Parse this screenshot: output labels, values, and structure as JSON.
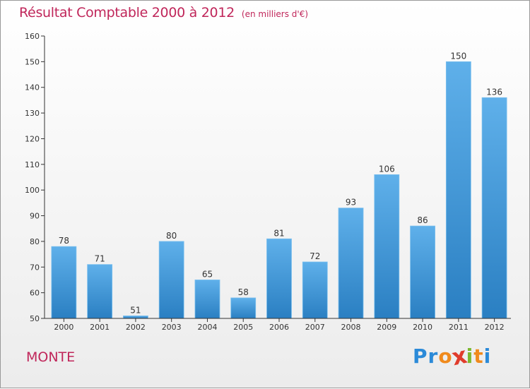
{
  "title": "Résultat Comptable 2000 à 2012",
  "subtitle": "(en milliers d'€)",
  "commune": "MONTE",
  "logo": {
    "letters": [
      "P",
      "r",
      "o",
      "x",
      "i",
      "t",
      "i"
    ],
    "colors": [
      "#2b8ad8",
      "#2b8ad8",
      "#f08a1c",
      "#e03c2c",
      "#7cb82f",
      "#f08a1c",
      "#2b8ad8"
    ]
  },
  "colors": {
    "title": "#c0265a",
    "bar_top": "#5fb0ea",
    "bar_bottom": "#2a7fc2",
    "axis": "#333333"
  },
  "chart_data": {
    "type": "bar",
    "title": "Résultat Comptable 2000 à 2012",
    "subtitle": "(en milliers d'€)",
    "xlabel": "",
    "ylabel": "",
    "categories": [
      "2000",
      "2001",
      "2002",
      "2003",
      "2004",
      "2005",
      "2006",
      "2007",
      "2008",
      "2009",
      "2010",
      "2011",
      "2012"
    ],
    "values": [
      78,
      71,
      51,
      80,
      65,
      58,
      81,
      72,
      93,
      106,
      86,
      150,
      136
    ],
    "ylim": [
      50,
      160
    ],
    "yticks": [
      50,
      60,
      70,
      80,
      90,
      100,
      110,
      120,
      130,
      140,
      150,
      160
    ],
    "grid": false,
    "legend": "none"
  }
}
